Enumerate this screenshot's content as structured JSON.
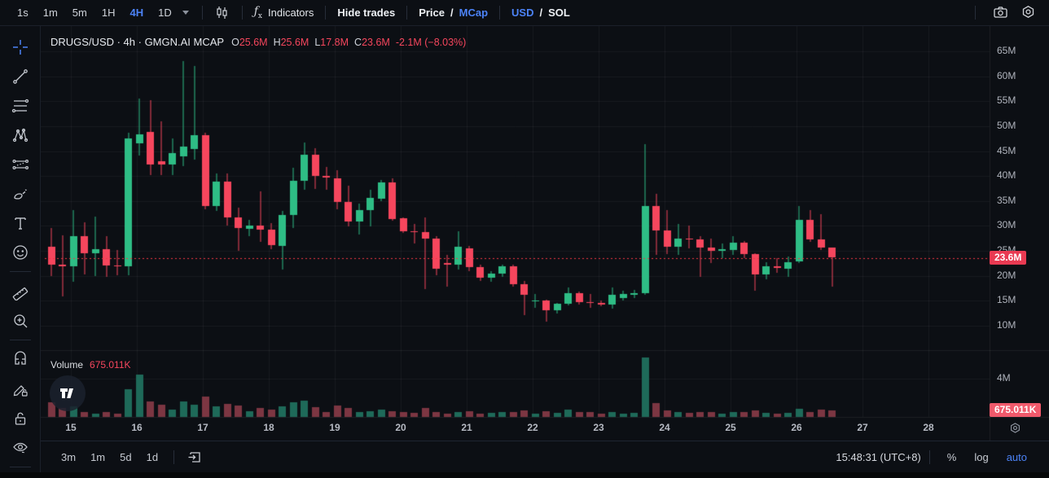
{
  "topbar": {
    "timeframes": [
      {
        "label": "1s",
        "active": false
      },
      {
        "label": "1m",
        "active": false
      },
      {
        "label": "5m",
        "active": false
      },
      {
        "label": "1H",
        "active": false
      },
      {
        "label": "4H",
        "active": true
      },
      {
        "label": "1D",
        "active": false
      }
    ],
    "chart_style_icon": "candlestick-icon",
    "fx_glyph": "ƒ",
    "fx_sub": "x",
    "indicators": "Indicators",
    "hide_trades": "Hide trades",
    "price": "Price",
    "price_mcap_sep": "/",
    "mcap": "MCap",
    "usd": "USD",
    "usd_sol_sep": "/",
    "sol": "SOL",
    "right_icons": [
      "camera-icon",
      "settings-icon"
    ]
  },
  "sidebar_tools": [
    "crosshair",
    "trend-line",
    "fib-retracement",
    "xabcd-pattern",
    "forecast",
    "brush",
    "text",
    "emoji",
    "ruler",
    "zoom-in",
    "magnet",
    "draw-pencil-lock",
    "lock-all",
    "hide-drawings"
  ],
  "legend": {
    "title": "DRUGS/USD · 4h · GMGN.AI MCAP",
    "o_label": "O",
    "o_value": "25.6M",
    "h_label": "H",
    "h_value": "25.6M",
    "l_label": "L",
    "l_value": "17.8M",
    "c_label": "C",
    "c_value": "23.6M",
    "change": "-2.1M (−8.03%)"
  },
  "volume_legend": {
    "label": "Volume",
    "value": "675.011K"
  },
  "price_axis": {
    "current_badge": "23.6M"
  },
  "volume_axis": {
    "tick": "4M",
    "badge": "675.011K"
  },
  "bottom_bar": {
    "ranges": [
      "3m",
      "1m",
      "5d",
      "1d"
    ],
    "goto_icon": "go-to-date-icon",
    "clock": "15:48:31 (UTC+8)",
    "percent": "%",
    "log": "log",
    "auto": "auto"
  },
  "colors": {
    "up": "#2ebd85",
    "down": "#f6465d",
    "vol_up": "#1e6a59",
    "vol_down": "#7c3642",
    "accent_blue": "#4c83f7",
    "badge_red": "#e93a52",
    "vol_badge_red": "#f0596b",
    "dotted_line": "#f23645",
    "grid": "rgba(255,255,255,0.05)",
    "bg": "#0c0f14",
    "text": "#d5d8de",
    "dim": "#8b919c",
    "axis_text": "#b0b4bd"
  },
  "chart_data": {
    "type": "candlestick",
    "title": "DRUGS/USD 4h market cap (GMGN.AI MCAP)",
    "y_unit_suffix": "M",
    "y_ticks": [
      65,
      60,
      55,
      50,
      45,
      40,
      35,
      30,
      25,
      20,
      15,
      10
    ],
    "x_days": [
      15,
      16,
      17,
      18,
      19,
      20,
      21,
      22,
      23,
      24,
      25,
      26,
      27,
      28
    ],
    "x_day_first_candle_index": 2,
    "candles_per_day": 6,
    "current_price": 23.6,
    "volume_tick_m": 4,
    "last_volume_m": 0.675,
    "candles": [
      [
        25.8,
        29.6,
        20.0,
        22.2
      ],
      [
        22.2,
        28.1,
        15.9,
        21.9
      ],
      [
        21.9,
        33.2,
        18.8,
        28.0
      ],
      [
        28.0,
        30.7,
        20.3,
        24.5
      ],
      [
        24.5,
        31.9,
        20.0,
        25.3
      ],
      [
        25.3,
        28.0,
        19.8,
        22.0
      ],
      [
        22.0,
        25.2,
        20.1,
        21.9
      ],
      [
        21.9,
        48.7,
        20.1,
        47.5
      ],
      [
        46.5,
        55.5,
        44.0,
        48.3
      ],
      [
        48.8,
        55.2,
        40.2,
        42.3
      ],
      [
        42.9,
        51.0,
        40.3,
        42.2
      ],
      [
        42.3,
        47.5,
        40.2,
        44.6
      ],
      [
        44.0,
        63.1,
        42.1,
        45.9
      ],
      [
        45.4,
        62.1,
        43.3,
        48.2
      ],
      [
        48.2,
        48.6,
        33.2,
        34.0
      ],
      [
        34.0,
        40.5,
        33.0,
        38.9
      ],
      [
        38.9,
        40.5,
        30.1,
        31.7
      ],
      [
        31.7,
        33.7,
        25.0,
        29.6
      ],
      [
        29.4,
        31.2,
        27.9,
        30.0
      ],
      [
        30.1,
        37.0,
        26.8,
        29.3
      ],
      [
        29.3,
        30.5,
        25.2,
        26.2
      ],
      [
        26.0,
        33.0,
        21.3,
        32.2
      ],
      [
        32.2,
        41.7,
        29.6,
        39.0
      ],
      [
        39.0,
        46.8,
        37.3,
        44.3
      ],
      [
        44.3,
        45.5,
        37.3,
        40.0
      ],
      [
        40.0,
        41.8,
        37.3,
        39.6
      ],
      [
        39.6,
        41.2,
        33.4,
        34.8
      ],
      [
        34.8,
        38.0,
        29.8,
        30.9
      ],
      [
        30.9,
        34.5,
        28.3,
        33.2
      ],
      [
        33.2,
        37.3,
        29.9,
        35.6
      ],
      [
        35.6,
        39.2,
        34.9,
        38.8
      ],
      [
        38.8,
        39.5,
        31.0,
        31.5
      ],
      [
        31.5,
        31.7,
        28.6,
        28.9
      ],
      [
        28.9,
        30.4,
        26.5,
        28.7
      ],
      [
        28.7,
        31.7,
        17.4,
        27.4
      ],
      [
        27.4,
        27.9,
        20.1,
        21.4
      ],
      [
        22.6,
        24.2,
        17.8,
        22.2
      ],
      [
        22.2,
        29.0,
        21.4,
        25.8
      ],
      [
        25.5,
        26.0,
        21.0,
        21.8
      ],
      [
        21.8,
        22.3,
        19.0,
        19.6
      ],
      [
        19.6,
        21.0,
        18.9,
        20.4
      ],
      [
        20.4,
        22.3,
        19.9,
        21.9
      ],
      [
        21.9,
        22.3,
        17.9,
        18.3
      ],
      [
        18.3,
        19.0,
        12.1,
        16.2
      ],
      [
        14.9,
        16.3,
        13.6,
        15.1
      ],
      [
        15.1,
        15.2,
        10.8,
        13.1
      ],
      [
        13.1,
        14.5,
        12.4,
        14.4
      ],
      [
        14.4,
        17.6,
        14.0,
        16.5
      ],
      [
        16.5,
        16.8,
        14.2,
        14.7
      ],
      [
        14.8,
        16.3,
        13.6,
        14.6
      ],
      [
        14.6,
        15.0,
        13.9,
        14.2
      ],
      [
        14.2,
        17.6,
        13.3,
        16.2
      ],
      [
        15.5,
        17.0,
        15.0,
        16.3
      ],
      [
        16.3,
        17.2,
        15.6,
        16.6
      ],
      [
        16.6,
        46.4,
        16.2,
        34.0
      ],
      [
        34.0,
        36.4,
        24.2,
        29.1
      ],
      [
        29.1,
        33.2,
        24.4,
        25.9
      ],
      [
        25.9,
        30.4,
        24.2,
        27.5
      ],
      [
        27.5,
        30.0,
        25.5,
        27.3
      ],
      [
        27.3,
        28.0,
        19.8,
        25.6
      ],
      [
        25.6,
        27.5,
        22.6,
        25.0
      ],
      [
        25.0,
        26.5,
        23.5,
        25.3
      ],
      [
        25.2,
        27.9,
        24.2,
        26.6
      ],
      [
        26.6,
        26.9,
        23.5,
        24.3
      ],
      [
        24.3,
        24.5,
        17.0,
        20.3
      ],
      [
        20.3,
        22.8,
        19.3,
        21.9
      ],
      [
        21.9,
        23.6,
        20.6,
        21.5
      ],
      [
        21.5,
        23.9,
        19.8,
        22.8
      ],
      [
        22.8,
        34.0,
        22.6,
        31.2
      ],
      [
        31.2,
        33.2,
        26.8,
        27.3
      ],
      [
        27.3,
        32.3,
        25.2,
        25.6
      ],
      [
        25.6,
        25.6,
        17.8,
        23.6
      ]
    ],
    "volumes_m": [
      1.5,
      0.9,
      1.1,
      0.55,
      0.35,
      0.5,
      0.3,
      2.9,
      4.4,
      1.6,
      1.3,
      0.8,
      1.6,
      1.3,
      2.1,
      1.1,
      1.4,
      1.2,
      0.6,
      0.9,
      0.8,
      1.1,
      1.5,
      1.7,
      1.0,
      0.5,
      1.2,
      0.9,
      0.5,
      0.6,
      0.8,
      0.6,
      0.5,
      0.4,
      0.9,
      0.5,
      0.3,
      0.5,
      0.6,
      0.3,
      0.4,
      0.5,
      0.55,
      0.7,
      0.35,
      0.6,
      0.4,
      0.75,
      0.55,
      0.5,
      0.3,
      0.5,
      0.35,
      0.4,
      6.2,
      1.45,
      0.65,
      0.5,
      0.4,
      0.55,
      0.5,
      0.35,
      0.5,
      0.5,
      0.7,
      0.45,
      0.3,
      0.4,
      0.85,
      0.5,
      0.8,
      0.675
    ]
  }
}
